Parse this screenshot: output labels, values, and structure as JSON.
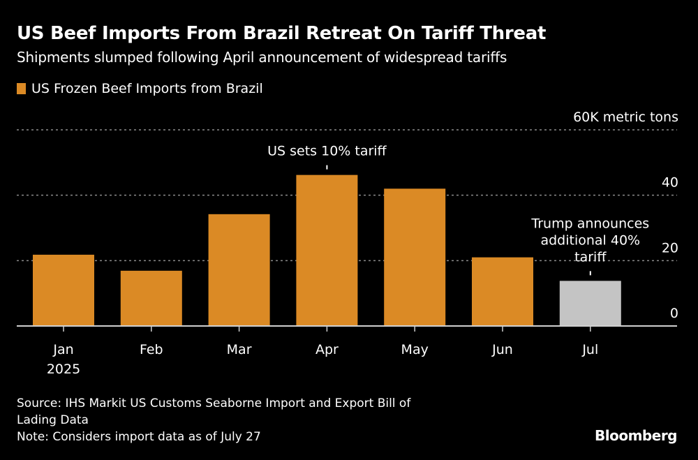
{
  "header": {
    "title": "US Beef Imports From Brazil Retreat On Tariff Threat",
    "subtitle": "Shipments slumped following April announcement of widespread tariffs"
  },
  "legend": {
    "label": "US Frozen Beef Imports from Brazil",
    "color": "#DB8A25"
  },
  "colors": {
    "bar": "#DB8A25",
    "highlight_bar": "#C4C4C4",
    "grid": "#8C8C8C",
    "axis": "#D0D0D0"
  },
  "chart_data": {
    "type": "bar",
    "title": "US Beef Imports From Brazil Retreat On Tariff Threat",
    "subtitle": "Shipments slumped following April announcement of widespread tariffs",
    "categories": [
      "Jan",
      "Feb",
      "Mar",
      "Apr",
      "May",
      "Jun",
      "Jul"
    ],
    "category_sublabels": [
      "2025",
      "",
      "",
      "",
      "",
      "",
      ""
    ],
    "series": [
      {
        "name": "US Frozen Beef Imports from Brazil",
        "values": [
          21.8,
          16.9,
          34.2,
          46.2,
          42.0,
          21.0,
          13.8
        ],
        "highlight": [
          false,
          false,
          false,
          false,
          false,
          false,
          true
        ]
      }
    ],
    "xlabel": "",
    "ylabel": "60K metric tons",
    "unit_label": "60K metric tons",
    "ylim": [
      0,
      60
    ],
    "yticks": [
      0,
      20,
      40,
      60
    ],
    "ytick_labels": [
      "0",
      "20",
      "40",
      "60K metric tons"
    ],
    "yaxis_side": "right",
    "grid": true,
    "legend_position": "top-left",
    "annotations": [
      {
        "category": "Apr",
        "lines": [
          "US sets 10% tariff"
        ]
      },
      {
        "category": "Jul",
        "lines": [
          "Trump announces",
          "additional 40%",
          "tariff"
        ]
      }
    ]
  },
  "footer": {
    "source_lines": [
      "Source: IHS Markit US Customs Seaborne Import and Export Bill of",
      "Lading Data",
      "Note: Considers import data as of July 27"
    ],
    "brand": "Bloomberg"
  }
}
